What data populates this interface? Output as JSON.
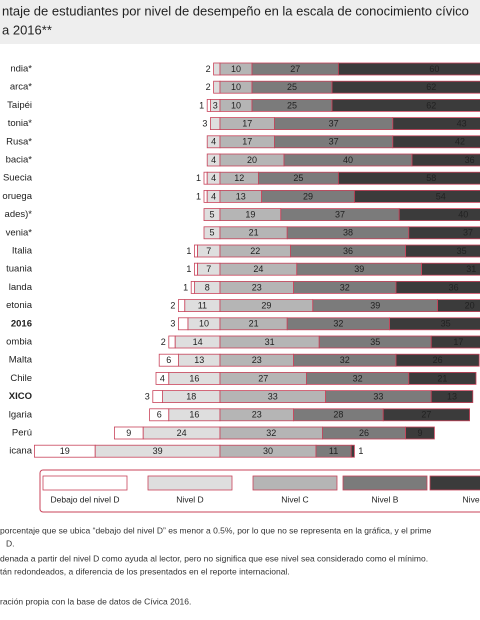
{
  "chart_data": {
    "type": "stacked-bar",
    "title": [
      "ntaje de estudiantes por nivel de desempeño en la escala de conocimiento cívico",
      "a 2016**"
    ],
    "categories": [
      "ndia*",
      "arca*",
      "Taipéi",
      "tonia*",
      "Rusa*",
      "bacia*",
      "Suecia",
      "oruega",
      "ades)*",
      "venia*",
      "Italia",
      "tuania",
      "landa",
      "etonia",
      "2016",
      "ombia",
      "Malta",
      "Chile",
      "XICO",
      "lgaria",
      "Perú",
      "icana"
    ],
    "series": [
      {
        "name": "Debajo del nivel D",
        "color": "#ffffff",
        "values": [
          null,
          null,
          1,
          null,
          null,
          null,
          1,
          1,
          null,
          null,
          1,
          1,
          1,
          2,
          3,
          2,
          6,
          4,
          3,
          6,
          9,
          19
        ]
      },
      {
        "name": "Nivel D",
        "color": "#dedede",
        "values": [
          2,
          2,
          3,
          3,
          4,
          4,
          4,
          4,
          5,
          5,
          7,
          7,
          8,
          11,
          10,
          14,
          13,
          16,
          18,
          16,
          24,
          39
        ]
      },
      {
        "name": "Nivel C",
        "color": "#b5b5b5",
        "values": [
          10,
          10,
          10,
          17,
          17,
          20,
          12,
          13,
          19,
          21,
          22,
          24,
          23,
          29,
          21,
          31,
          23,
          27,
          33,
          23,
          32,
          30
        ]
      },
      {
        "name": "Nivel B",
        "color": "#7b7b7b",
        "values": [
          27,
          25,
          25,
          37,
          37,
          40,
          25,
          29,
          37,
          38,
          36,
          39,
          32,
          39,
          32,
          35,
          32,
          32,
          33,
          28,
          26,
          11
        ]
      },
      {
        "name": "Nivel",
        "color": "#3b3b3b",
        "values": [
          60,
          62,
          62,
          43,
          42,
          36,
          58,
          54,
          40,
          37,
          35,
          31,
          36,
          20,
          35,
          17,
          26,
          21,
          13,
          27,
          9,
          1
        ]
      }
    ],
    "notes": [
      "porcentaje que se ubica “debajo del nivel D” es menor a 0.5%, por lo que no se representa en la gráfica, y el prime",
      "D.",
      "denada a partir del nivel D como ayuda al lector, pero no significa que ese nivel sea considerado como el mínimo.",
      "tán redondeados, a diferencia de los presentados en el reporte internacional.",
      "ración propia con la base de datos de Cívica 2016."
    ]
  }
}
